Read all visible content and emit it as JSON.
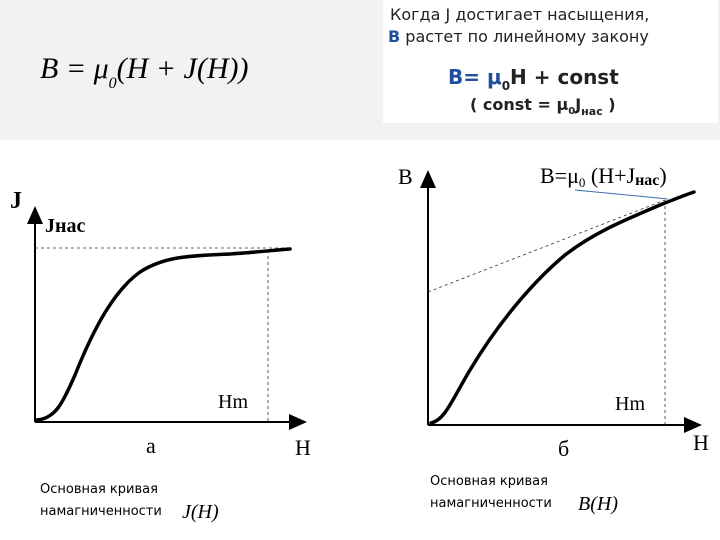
{
  "formula": {
    "lhs": "B = μ",
    "sub": "0",
    "rhs": "(H + J(H))"
  },
  "note": {
    "line1": "Когда J достигает насыщения,",
    "line2_b": "B",
    "line2": " растет по линейному закону",
    "formula_a": "B= μ",
    "formula_sub": "0",
    "formula_b": "H + const",
    "const_a": "( const = μ",
    "const_sub": "0",
    "const_b": "J",
    "const_sub2": "нас",
    "const_c": " )"
  },
  "graph_a": {
    "y_label": "J",
    "sat_label": "Jнас",
    "hm_label": "Hm",
    "x_label": "H",
    "caption_letter": "а",
    "caption_line1": "Основная кривая",
    "caption_line2": "намагниченности",
    "function": "J(H)"
  },
  "graph_b": {
    "y_label": "B",
    "line_label_a": "B=μ",
    "line_label_sub": "0",
    "line_label_b": " (H+J",
    "line_label_sub2": "нас",
    "line_label_c": ")",
    "hm_label": "Hm",
    "x_label": "H",
    "caption_letter": "б",
    "caption_line1": "Основная кривая",
    "caption_line2": "намагниченности",
    "function": "B(H)"
  }
}
